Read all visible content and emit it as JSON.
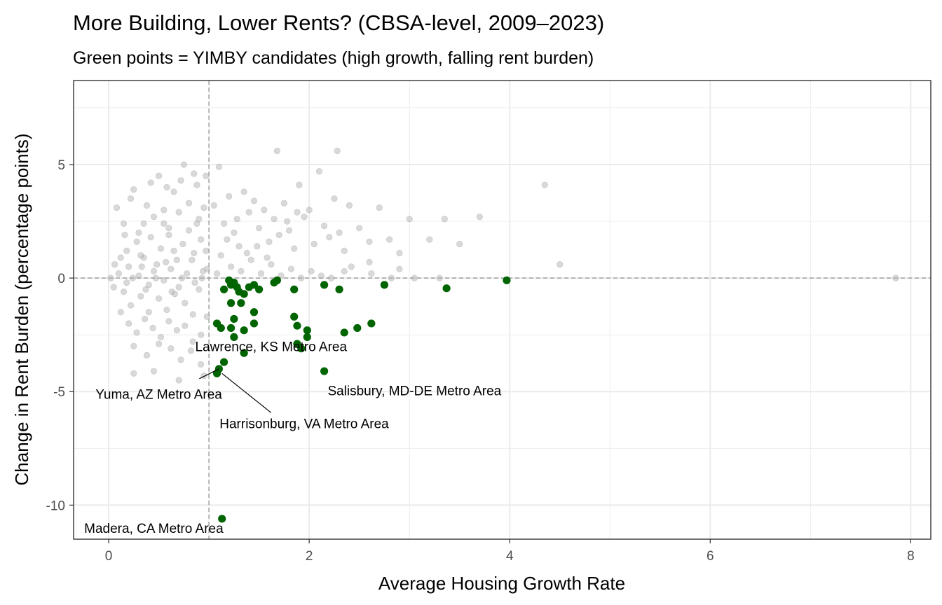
{
  "chart_data": {
    "type": "scatter",
    "title": "More Building, Lower Rents? (CBSA-level, 2009–2023)",
    "subtitle": "Green points = YIMBY candidates (high growth, falling rent burden)",
    "xlabel": "Average Housing Growth Rate",
    "ylabel": "Change in Rent Burden (percentage points)",
    "xlim": [
      -0.35,
      8.2
    ],
    "ylim": [
      -11.5,
      8.7
    ],
    "x_ticks": [
      0,
      2,
      4,
      6,
      8
    ],
    "x_tick_labels": [
      "0",
      "2",
      "4",
      "6",
      "8"
    ],
    "y_ticks": [
      5,
      0,
      -5,
      -10
    ],
    "y_tick_labels": [
      "5",
      "0",
      "-5",
      "-10"
    ],
    "x_minor": [
      1,
      3,
      5,
      7
    ],
    "y_minor": [
      7.5,
      2.5,
      -2.5,
      -7.5
    ],
    "grid": true,
    "reference_lines": {
      "x": 1,
      "y": 0
    },
    "colors": {
      "background_points": "#b3b3b3",
      "yimby_points": "#006400",
      "reference_line": "#999999",
      "grid": "#ebebeb",
      "panel_border": "#333333"
    },
    "series": [
      {
        "points": [
          [
            0.08,
            3.1
          ],
          [
            0.15,
            2.4
          ],
          [
            0.22,
            3.5
          ],
          [
            0.3,
            2.0
          ],
          [
            0.38,
            3.2
          ],
          [
            0.45,
            2.7
          ],
          [
            0.5,
            4.5
          ],
          [
            0.55,
            3.0
          ],
          [
            0.6,
            2.2
          ],
          [
            0.65,
            3.8
          ],
          [
            0.7,
            2.9
          ],
          [
            0.75,
            5.0
          ],
          [
            0.8,
            3.3
          ],
          [
            0.85,
            4.6
          ],
          [
            0.9,
            2.6
          ],
          [
            0.95,
            3.1
          ],
          [
            0.25,
            3.9
          ],
          [
            0.42,
            4.2
          ],
          [
            0.58,
            4.0
          ],
          [
            0.72,
            4.3
          ],
          [
            0.88,
            4.1
          ],
          [
            0.97,
            4.5
          ],
          [
            0.18,
            1.2
          ],
          [
            0.28,
            1.6
          ],
          [
            0.35,
            0.9
          ],
          [
            0.42,
            1.8
          ],
          [
            0.48,
            0.6
          ],
          [
            0.52,
            1.3
          ],
          [
            0.6,
            1.9
          ],
          [
            0.68,
            0.8
          ],
          [
            0.74,
            1.5
          ],
          [
            0.8,
            2.1
          ],
          [
            0.85,
            1.1
          ],
          [
            0.92,
            1.7
          ],
          [
            0.98,
            0.4
          ],
          [
            0.1,
            0.2
          ],
          [
            0.2,
            0.5
          ],
          [
            0.3,
            0.1
          ],
          [
            0.4,
            -0.3
          ],
          [
            0.45,
            0.3
          ],
          [
            0.55,
            -0.1
          ],
          [
            0.62,
            0.4
          ],
          [
            0.7,
            -0.4
          ],
          [
            0.78,
            0.2
          ],
          [
            0.86,
            -0.2
          ],
          [
            0.94,
            0.3
          ],
          [
            0.15,
            -0.6
          ],
          [
            0.22,
            -1.2
          ],
          [
            0.32,
            -0.8
          ],
          [
            0.4,
            -1.5
          ],
          [
            0.5,
            -0.9
          ],
          [
            0.58,
            -1.4
          ],
          [
            0.66,
            -0.7
          ],
          [
            0.76,
            -1.1
          ],
          [
            0.84,
            -1.6
          ],
          [
            0.9,
            -0.5
          ],
          [
            0.05,
            -0.4
          ],
          [
            0.12,
            -1.5
          ],
          [
            0.2,
            -2.0
          ],
          [
            0.28,
            -2.4
          ],
          [
            0.36,
            -1.8
          ],
          [
            0.44,
            -2.2
          ],
          [
            0.52,
            -2.6
          ],
          [
            0.6,
            -1.9
          ],
          [
            0.68,
            -2.3
          ],
          [
            0.76,
            -2.1
          ],
          [
            0.84,
            -2.8
          ],
          [
            0.92,
            -2.5
          ],
          [
            0.98,
            -1.7
          ],
          [
            0.25,
            -3.0
          ],
          [
            0.38,
            -3.4
          ],
          [
            0.5,
            -2.9
          ],
          [
            0.62,
            -3.1
          ],
          [
            0.72,
            -3.6
          ],
          [
            0.82,
            -3.2
          ],
          [
            0.92,
            -3.8
          ],
          [
            0.45,
            -4.1
          ],
          [
            0.7,
            -4.5
          ],
          [
            0.25,
            -4.2
          ],
          [
            0.95,
            -4.3
          ],
          [
            0.02,
            0.0
          ],
          [
            0.06,
            0.6
          ],
          [
            0.12,
            0.9
          ],
          [
            0.18,
            -0.2
          ],
          [
            0.24,
            0.0
          ],
          [
            0.33,
            0.5
          ],
          [
            0.37,
            -0.5
          ],
          [
            0.47,
            0.0
          ],
          [
            0.57,
            0.7
          ],
          [
            0.63,
            -0.6
          ],
          [
            0.73,
            0.0
          ],
          [
            0.83,
            0.8
          ],
          [
            0.93,
            0.0
          ],
          [
            0.97,
            1.2
          ],
          [
            0.35,
            2.4
          ],
          [
            0.55,
            2.4
          ],
          [
            0.88,
            2.4
          ],
          [
            0.65,
            1.2
          ],
          [
            0.32,
            1.0
          ],
          [
            0.16,
            1.9
          ],
          [
            1.05,
            3.2
          ],
          [
            1.1,
            4.9
          ],
          [
            1.15,
            2.4
          ],
          [
            1.2,
            3.6
          ],
          [
            1.25,
            2.0
          ],
          [
            1.3,
            1.4
          ],
          [
            1.35,
            3.8
          ],
          [
            1.4,
            2.9
          ],
          [
            1.45,
            3.4
          ],
          [
            1.5,
            2.2
          ],
          [
            1.55,
            3.0
          ],
          [
            1.6,
            1.6
          ],
          [
            1.65,
            2.6
          ],
          [
            1.7,
            1.9
          ],
          [
            1.75,
            3.3
          ],
          [
            1.8,
            2.1
          ],
          [
            1.85,
            1.3
          ],
          [
            1.9,
            4.1
          ],
          [
            1.95,
            2.7
          ],
          [
            2.0,
            3.0
          ],
          [
            2.05,
            1.5
          ],
          [
            2.1,
            4.7
          ],
          [
            2.15,
            2.3
          ],
          [
            2.2,
            1.8
          ],
          [
            2.25,
            3.5
          ],
          [
            2.3,
            2.0
          ],
          [
            2.35,
            1.2
          ],
          [
            2.4,
            3.2
          ],
          [
            2.5,
            2.2
          ],
          [
            2.6,
            1.6
          ],
          [
            2.7,
            3.1
          ],
          [
            2.8,
            1.7
          ],
          [
            2.9,
            1.1
          ],
          [
            3.0,
            2.6
          ],
          [
            3.2,
            1.7
          ],
          [
            3.35,
            2.6
          ],
          [
            3.5,
            1.5
          ],
          [
            3.7,
            2.7
          ],
          [
            4.35,
            4.1
          ],
          [
            4.5,
            0.6
          ],
          [
            1.12,
            1.0
          ],
          [
            1.22,
            0.5
          ],
          [
            1.32,
            0.3
          ],
          [
            1.42,
            0.8
          ],
          [
            1.52,
            0.2
          ],
          [
            1.62,
            0.6
          ],
          [
            1.72,
            0.1
          ],
          [
            1.82,
            0.4
          ],
          [
            1.92,
            0.0
          ],
          [
            2.02,
            0.3
          ],
          [
            2.12,
            0.1
          ],
          [
            2.22,
            0.0
          ],
          [
            2.42,
            0.5
          ],
          [
            2.62,
            0.2
          ],
          [
            2.82,
            0.0
          ],
          [
            3.05,
            0.0
          ],
          [
            1.08,
            0.2
          ],
          [
            1.18,
            1.7
          ],
          [
            1.28,
            2.6
          ],
          [
            1.38,
            1.1
          ],
          [
            1.48,
            1.4
          ],
          [
            1.58,
            0.9
          ],
          [
            1.68,
            5.6
          ],
          [
            2.28,
            5.6
          ],
          [
            1.78,
            2.5
          ],
          [
            1.88,
            2.9
          ],
          [
            2.6,
            0.7
          ],
          [
            2.35,
            0.3
          ],
          [
            2.9,
            0.4
          ],
          [
            3.3,
            0.0
          ],
          [
            7.85,
            0.0
          ]
        ]
      },
      {
        "points": [
          [
            1.2,
            -0.1
          ],
          [
            1.22,
            -0.3
          ],
          [
            1.25,
            -0.2
          ],
          [
            1.28,
            -0.4
          ],
          [
            1.15,
            -0.5
          ],
          [
            1.3,
            -0.6
          ],
          [
            1.35,
            -0.7
          ],
          [
            1.4,
            -0.4
          ],
          [
            1.45,
            -0.3
          ],
          [
            1.5,
            -0.5
          ],
          [
            1.65,
            -0.2
          ],
          [
            1.68,
            -0.1
          ],
          [
            1.85,
            -0.5
          ],
          [
            2.15,
            -0.3
          ],
          [
            2.3,
            -0.5
          ],
          [
            2.75,
            -0.3
          ],
          [
            3.37,
            -0.45
          ],
          [
            3.97,
            -0.1
          ],
          [
            1.22,
            -1.1
          ],
          [
            1.32,
            -1.1
          ],
          [
            1.45,
            -1.5
          ],
          [
            1.85,
            -1.7
          ],
          [
            1.08,
            -2.0
          ],
          [
            1.12,
            -2.2
          ],
          [
            1.22,
            -2.2
          ],
          [
            1.25,
            -1.8
          ],
          [
            1.35,
            -2.3
          ],
          [
            1.45,
            -2.0
          ],
          [
            1.88,
            -2.1
          ],
          [
            1.98,
            -2.3
          ],
          [
            2.48,
            -2.2
          ],
          [
            2.62,
            -2.0
          ],
          [
            1.25,
            -2.6
          ],
          [
            1.35,
            -3.3
          ],
          [
            1.88,
            -2.9
          ],
          [
            1.92,
            -3.1
          ],
          [
            1.98,
            -2.6
          ],
          [
            2.35,
            -2.4
          ],
          [
            1.15,
            -3.7
          ],
          [
            1.1,
            -4.0
          ],
          [
            1.08,
            -4.2
          ],
          [
            2.15,
            -4.1
          ],
          [
            1.13,
            -10.6
          ]
        ]
      }
    ],
    "annotations": [
      {
        "text": "Lawrence, KS Metro Area",
        "x": 1.62,
        "y": -3.0
      },
      {
        "text": "Yuma, AZ Metro Area",
        "x": 0.5,
        "y": -5.1,
        "point": [
          1.1,
          -4.0
        ]
      },
      {
        "text": "Harrisonburg, VA Metro Area",
        "x": 1.95,
        "y": -6.4,
        "point": [
          1.13,
          -4.2
        ]
      },
      {
        "text": "Salisbury, MD-DE Metro Area",
        "x": 3.05,
        "y": -4.95
      },
      {
        "text": "Madera, CA Metro Area",
        "x": 0.45,
        "y": -11.0
      }
    ]
  }
}
